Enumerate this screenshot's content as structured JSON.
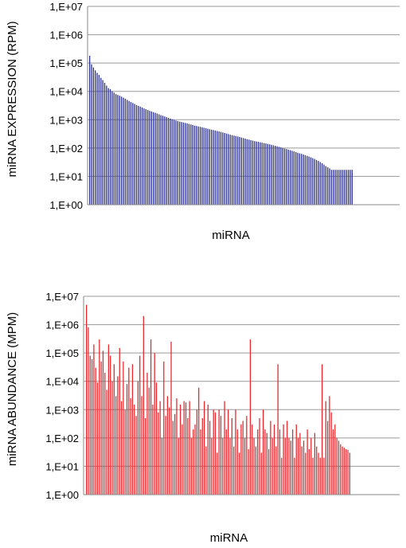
{
  "chart_data": [
    {
      "type": "bar",
      "yscale": "log",
      "ylim": [
        1,
        10000000
      ],
      "ylabel": "miRNA EXPRESSION (RPM)",
      "xlabel": "miRNA",
      "ytick_labels": [
        "1,E+00",
        "1,E+01",
        "1,E+02",
        "1,E+03",
        "1,E+04",
        "1,E+05",
        "1,E+06",
        "1,E+07"
      ],
      "ytick_values": [
        1,
        10,
        100,
        1000,
        10000,
        100000,
        1000000,
        10000000
      ],
      "grid": true,
      "legend": "none",
      "color": "#2b2f8f",
      "values": [
        180000,
        90000,
        70000,
        55000,
        45000,
        38000,
        30000,
        25000,
        20000,
        16000,
        13000,
        12000,
        10000,
        9000,
        8000,
        7500,
        7000,
        6500,
        6000,
        5500,
        5000,
        4600,
        4200,
        3900,
        3600,
        3300,
        3100,
        2900,
        2700,
        2500,
        2350,
        2200,
        2050,
        1950,
        1850,
        1750,
        1650,
        1550,
        1450,
        1380,
        1300,
        1230,
        1160,
        1100,
        1040,
        990,
        940,
        900,
        860,
        830,
        800,
        770,
        740,
        710,
        680,
        650,
        620,
        600,
        580,
        560,
        540,
        520,
        500,
        480,
        460,
        445,
        430,
        415,
        400,
        385,
        370,
        355,
        340,
        325,
        310,
        295,
        285,
        275,
        265,
        255,
        245,
        235,
        225,
        215,
        205,
        198,
        190,
        183,
        176,
        170,
        165,
        160,
        155,
        150,
        145,
        140,
        135,
        130,
        125,
        120,
        115,
        110,
        105,
        100,
        96,
        92,
        88,
        84,
        80,
        76,
        72,
        68,
        65,
        62,
        59,
        56,
        53,
        50,
        47,
        44,
        41,
        38,
        35,
        32,
        29,
        26,
        23,
        21,
        19,
        17,
        17,
        17,
        17,
        17,
        17,
        17,
        17,
        17,
        17,
        17,
        17
      ]
    },
    {
      "type": "bar",
      "yscale": "log",
      "ylim": [
        1,
        10000000
      ],
      "ylabel": "miRNA ABUNDANCE (MPM)",
      "xlabel": "miRNA",
      "ytick_labels": [
        "1,E+00",
        "1,E+01",
        "1,E+02",
        "1,E+03",
        "1,E+04",
        "1,E+05",
        "1,E+06",
        "1,E+07"
      ],
      "ytick_values": [
        1,
        10,
        100,
        1000,
        10000,
        100000,
        1000000,
        10000000
      ],
      "grid": true,
      "legend": "none",
      "color": "#e8262b",
      "values": [
        5000000,
        800000,
        80000,
        60000,
        200000,
        30000,
        9000,
        300000,
        50000,
        120000,
        20000,
        5000,
        200000,
        80000,
        10000,
        40000,
        3000,
        15000,
        150000,
        2000,
        50000,
        1000,
        8000,
        30000,
        2500,
        40000,
        1500,
        600,
        10000,
        80000,
        3000,
        2000000,
        500,
        20000,
        6000,
        300000,
        1500,
        100000,
        9000,
        800,
        2000,
        100,
        50000,
        600,
        3000,
        1200,
        250000,
        400,
        700,
        2500,
        100,
        1500,
        300,
        2000,
        1800,
        500,
        2000,
        100,
        200,
        300,
        1000,
        6000,
        200,
        500,
        2000,
        50,
        1500,
        400,
        100,
        1000,
        800,
        30,
        1000,
        600,
        100,
        2000,
        200,
        1000,
        100,
        500,
        50,
        1000,
        200,
        30,
        300,
        400,
        100,
        600,
        40,
        300000,
        300,
        100,
        50,
        200,
        500,
        30,
        1000,
        200,
        150,
        40,
        400,
        100,
        300,
        50,
        40000,
        200,
        20,
        300,
        100,
        400,
        100,
        80,
        200,
        20,
        300,
        100,
        150,
        50,
        80,
        30,
        200,
        40,
        100,
        20,
        150,
        50,
        30,
        20,
        40000,
        20,
        2000,
        400,
        3000,
        800,
        200,
        300,
        100,
        80,
        60,
        50,
        45,
        40,
        38,
        30
      ]
    }
  ]
}
